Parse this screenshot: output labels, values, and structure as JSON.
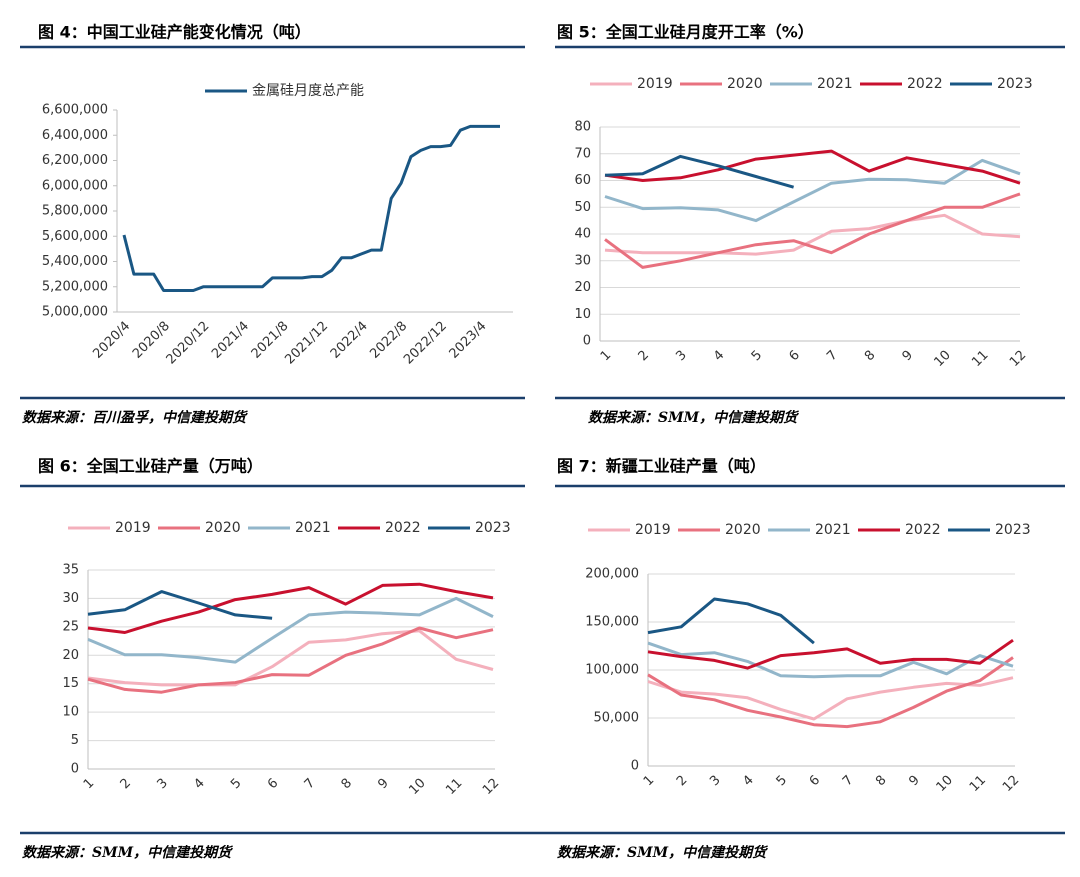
{
  "chart_data": [
    {
      "type": "line",
      "title": "图 4：中国工业硅产能变化情况（吨）",
      "source": "数据来源：百川盈孚，中信建投期货",
      "categories": [
        "2020/4",
        null,
        null,
        null,
        "2020/8",
        null,
        null,
        null,
        "2020/12",
        null,
        null,
        null,
        "2021/4",
        null,
        null,
        null,
        "2021/8",
        null,
        null,
        null,
        "2021/12",
        null,
        null,
        null,
        "2022/4",
        null,
        null,
        null,
        "2022/8",
        null,
        null,
        null,
        "2022/12",
        null,
        null,
        null,
        "2023/4",
        null,
        null
      ],
      "series": [
        {
          "name": "金属硅月度总产能",
          "color": "#1a5784",
          "values": [
            5610000,
            5300000,
            5300000,
            5300000,
            5170000,
            5170000,
            5170000,
            5170000,
            5200000,
            5200000,
            5200000,
            5200000,
            5200000,
            5200000,
            5200000,
            5270000,
            5270000,
            5270000,
            5270000,
            5280000,
            5280000,
            5330000,
            5430000,
            5430000,
            5460000,
            5490000,
            5490000,
            5900000,
            6020000,
            6230000,
            6280000,
            6310000,
            6310000,
            6320000,
            6440000,
            6470000,
            6470000,
            6470000,
            6470000
          ]
        }
      ],
      "ylim": [
        5000000,
        6600000
      ],
      "yticks": [
        {
          "value": 5000000,
          "label": "5,000,000"
        },
        {
          "value": 5200000,
          "label": "5,200,000"
        },
        {
          "value": 5400000,
          "label": "5,400,000"
        },
        {
          "value": 5600000,
          "label": "5,600,000"
        },
        {
          "value": 5800000,
          "label": "5,800,000"
        },
        {
          "value": 6000000,
          "label": "6,000,000"
        },
        {
          "value": 6200000,
          "label": "6,200,000"
        },
        {
          "value": 6400000,
          "label": "6,400,000"
        },
        {
          "value": 6600000,
          "label": "6,600,000"
        }
      ],
      "grid": false
    },
    {
      "type": "line",
      "title": "图 5：全国工业硅月度开工率（%）",
      "source": "数据来源：SMM，中信建投期货",
      "categories": [
        "1",
        "2",
        "3",
        "4",
        "5",
        "6",
        "7",
        "8",
        "9",
        "10",
        "11",
        "12"
      ],
      "series": [
        {
          "name": "2019",
          "color": "#f4b0bc",
          "values": [
            34,
            33,
            33,
            33,
            32.5,
            34,
            41,
            42,
            45,
            47,
            40,
            39
          ]
        },
        {
          "name": "2020",
          "color": "#e8717f",
          "values": [
            38,
            27.5,
            30,
            33,
            36,
            37.5,
            33,
            40,
            45,
            50,
            50,
            55
          ]
        },
        {
          "name": "2021",
          "color": "#92b6ca",
          "values": [
            54,
            49.5,
            49.8,
            49,
            45,
            52,
            59,
            60.5,
            60.3,
            59,
            67.5,
            62.5
          ]
        },
        {
          "name": "2022",
          "color": "#c8102e",
          "values": [
            62,
            60,
            61,
            64,
            68,
            69.5,
            71,
            63.5,
            68.5,
            66,
            63.5,
            59
          ]
        },
        {
          "name": "2023",
          "color": "#1a5784",
          "values": [
            62,
            62.5,
            69,
            65.5,
            61.5,
            57.5,
            null,
            null,
            null,
            null,
            null,
            null
          ]
        }
      ],
      "ylim": [
        0,
        80
      ],
      "yticks": [
        0,
        10,
        20,
        30,
        40,
        50,
        60,
        70,
        80
      ],
      "grid": true
    },
    {
      "type": "line",
      "title": "图 6：全国工业硅产量（万吨）",
      "source": "数据来源：SMM，中信建投期货",
      "categories": [
        "1",
        "2",
        "3",
        "4",
        "5",
        "6",
        "7",
        "8",
        "9",
        "10",
        "11",
        "12"
      ],
      "series": [
        {
          "name": "2019",
          "color": "#f4b0bc",
          "values": [
            16,
            15.2,
            14.8,
            14.8,
            14.8,
            18,
            22.3,
            22.7,
            23.8,
            24.3,
            19.3,
            17.5
          ]
        },
        {
          "name": "2020",
          "color": "#e8717f",
          "values": [
            15.8,
            14,
            13.5,
            14.8,
            15.2,
            16.6,
            16.5,
            20,
            22,
            24.8,
            23.1,
            24.5
          ]
        },
        {
          "name": "2021",
          "color": "#92b6ca",
          "values": [
            22.8,
            20.1,
            20.1,
            19.6,
            18.8,
            23,
            27.1,
            27.6,
            27.4,
            27.1,
            30,
            26.8
          ]
        },
        {
          "name": "2022",
          "color": "#c8102e",
          "values": [
            24.8,
            24,
            26,
            27.6,
            29.8,
            30.7,
            31.9,
            29,
            32.3,
            32.5,
            31.2,
            30.1
          ]
        },
        {
          "name": "2023",
          "color": "#1a5784",
          "values": [
            27.2,
            28,
            31.2,
            29.2,
            27.1,
            26.5,
            null,
            null,
            null,
            null,
            null,
            null
          ]
        }
      ],
      "ylim": [
        0,
        35
      ],
      "yticks": [
        0,
        5,
        10,
        15,
        20,
        25,
        30,
        35
      ],
      "grid": true
    },
    {
      "type": "line",
      "title": "图 7：新疆工业硅产量（吨）",
      "source": "数据来源：SMM，中信建投期货",
      "categories": [
        "1",
        "2",
        "3",
        "4",
        "5",
        "6",
        "7",
        "8",
        "9",
        "10",
        "11",
        "12"
      ],
      "series": [
        {
          "name": "2019",
          "color": "#f4b0bc",
          "values": [
            88000,
            77000,
            75000,
            71000,
            59000,
            49000,
            70000,
            77000,
            82000,
            86000,
            84000,
            92000
          ]
        },
        {
          "name": "2020",
          "color": "#e8717f",
          "values": [
            95000,
            74000,
            69000,
            58000,
            51000,
            43000,
            41000,
            46000,
            61000,
            78000,
            89000,
            113000
          ]
        },
        {
          "name": "2021",
          "color": "#92b6ca",
          "values": [
            128000,
            116000,
            118000,
            109000,
            94000,
            93000,
            94000,
            94000,
            108000,
            96000,
            115000,
            104000
          ]
        },
        {
          "name": "2022",
          "color": "#c8102e",
          "values": [
            119000,
            114000,
            110000,
            102000,
            115000,
            118000,
            122000,
            107000,
            111000,
            111000,
            107000,
            131000
          ]
        },
        {
          "name": "2023",
          "color": "#1a5784",
          "values": [
            139000,
            145000,
            174000,
            169000,
            157000,
            128000,
            null,
            null,
            null,
            null,
            null,
            null
          ]
        }
      ],
      "ylim": [
        0,
        200000
      ],
      "yticks": [
        0,
        {
          "value": 50000,
          "label": "50,000"
        },
        {
          "value": 100000,
          "label": "100,000"
        },
        {
          "value": 150000,
          "label": "150,000"
        },
        {
          "value": 200000,
          "label": "200,000"
        }
      ],
      "grid": true
    }
  ]
}
